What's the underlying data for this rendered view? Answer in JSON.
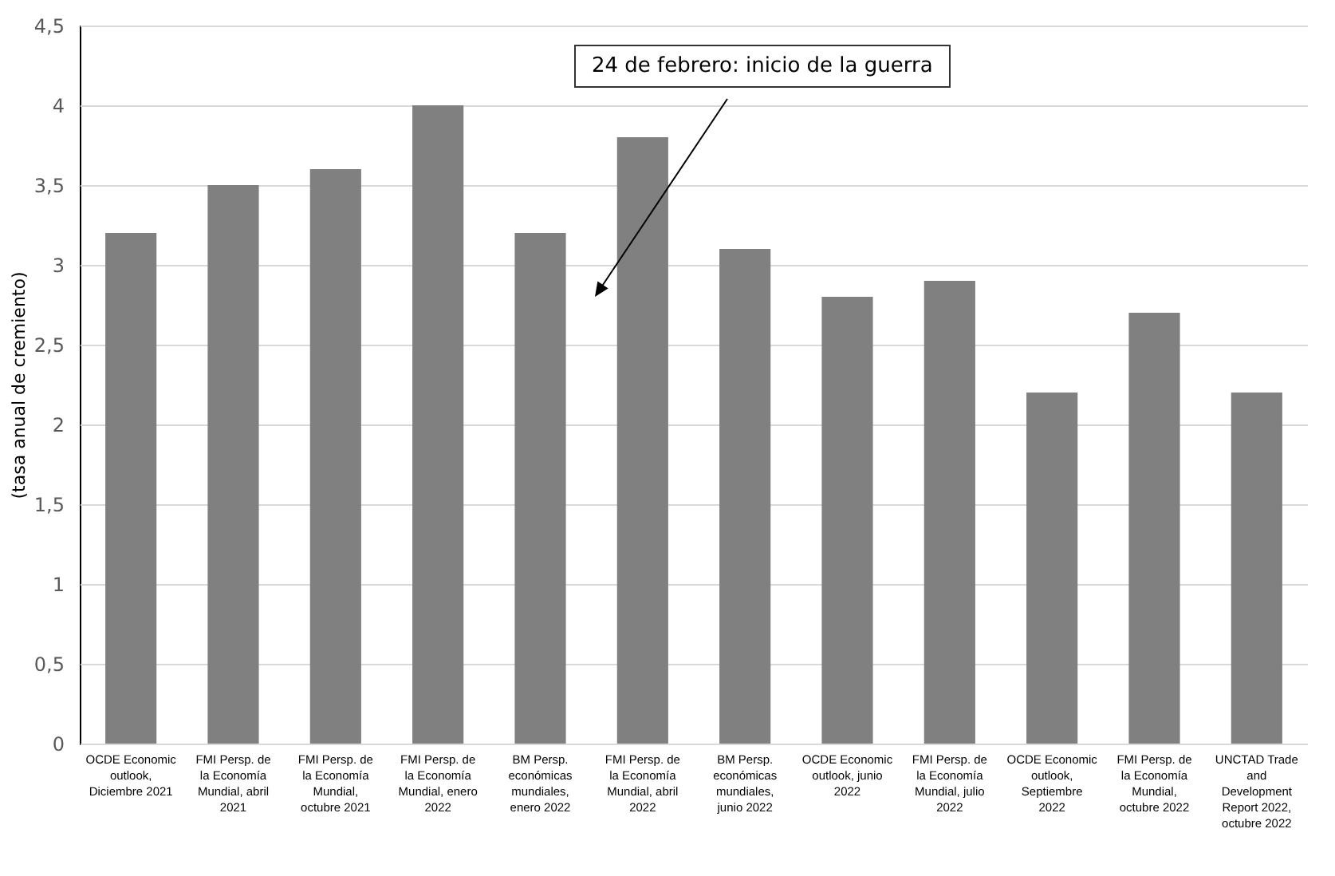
{
  "chart_data": {
    "type": "bar",
    "ylabel": "(tasa anual de cremiento)",
    "categories": [
      "OCDE Economic outlook, Diciembre 2021",
      "FMI Persp. de la Economía Mundial, abril 2021",
      "FMI Persp. de la Economía Mundial, octubre 2021",
      "FMI Persp. de la Economía Mundial, enero 2022",
      "BM Persp. económicas mundiales, enero 2022",
      "FMI Persp. de la Economía Mundial, abril 2022",
      "BM Persp. económicas mundiales, junio 2022",
      "OCDE Economic outlook, junio 2022",
      "FMI Persp. de la Economía Mundial, julio 2022",
      "OCDE Economic outlook, Septiembre 2022",
      "FMI Persp. de la Economía Mundial, octubre 2022",
      "UNCTAD Trade and Development Report 2022, octubre 2022"
    ],
    "values": [
      3.2,
      3.5,
      3.6,
      4.0,
      3.2,
      3.8,
      3.1,
      2.8,
      2.9,
      2.2,
      2.7,
      2.2
    ],
    "color": "#808080",
    "ylim": [
      0,
      4.5
    ],
    "yticks": [
      {
        "value": 0,
        "label": "0"
      },
      {
        "value": 0.5,
        "label": "0,5"
      },
      {
        "value": 1,
        "label": "1"
      },
      {
        "value": 1.5,
        "label": "1,5"
      },
      {
        "value": 2,
        "label": "2"
      },
      {
        "value": 2.5,
        "label": "2,5"
      },
      {
        "value": 3,
        "label": "3"
      },
      {
        "value": 3.5,
        "label": "3,5"
      },
      {
        "value": 4,
        "label": "4"
      },
      {
        "value": 4.5,
        "label": "4,5"
      }
    ],
    "grid": "y",
    "annotations": [
      "24 de febrero: inicio de la guerra"
    ]
  }
}
